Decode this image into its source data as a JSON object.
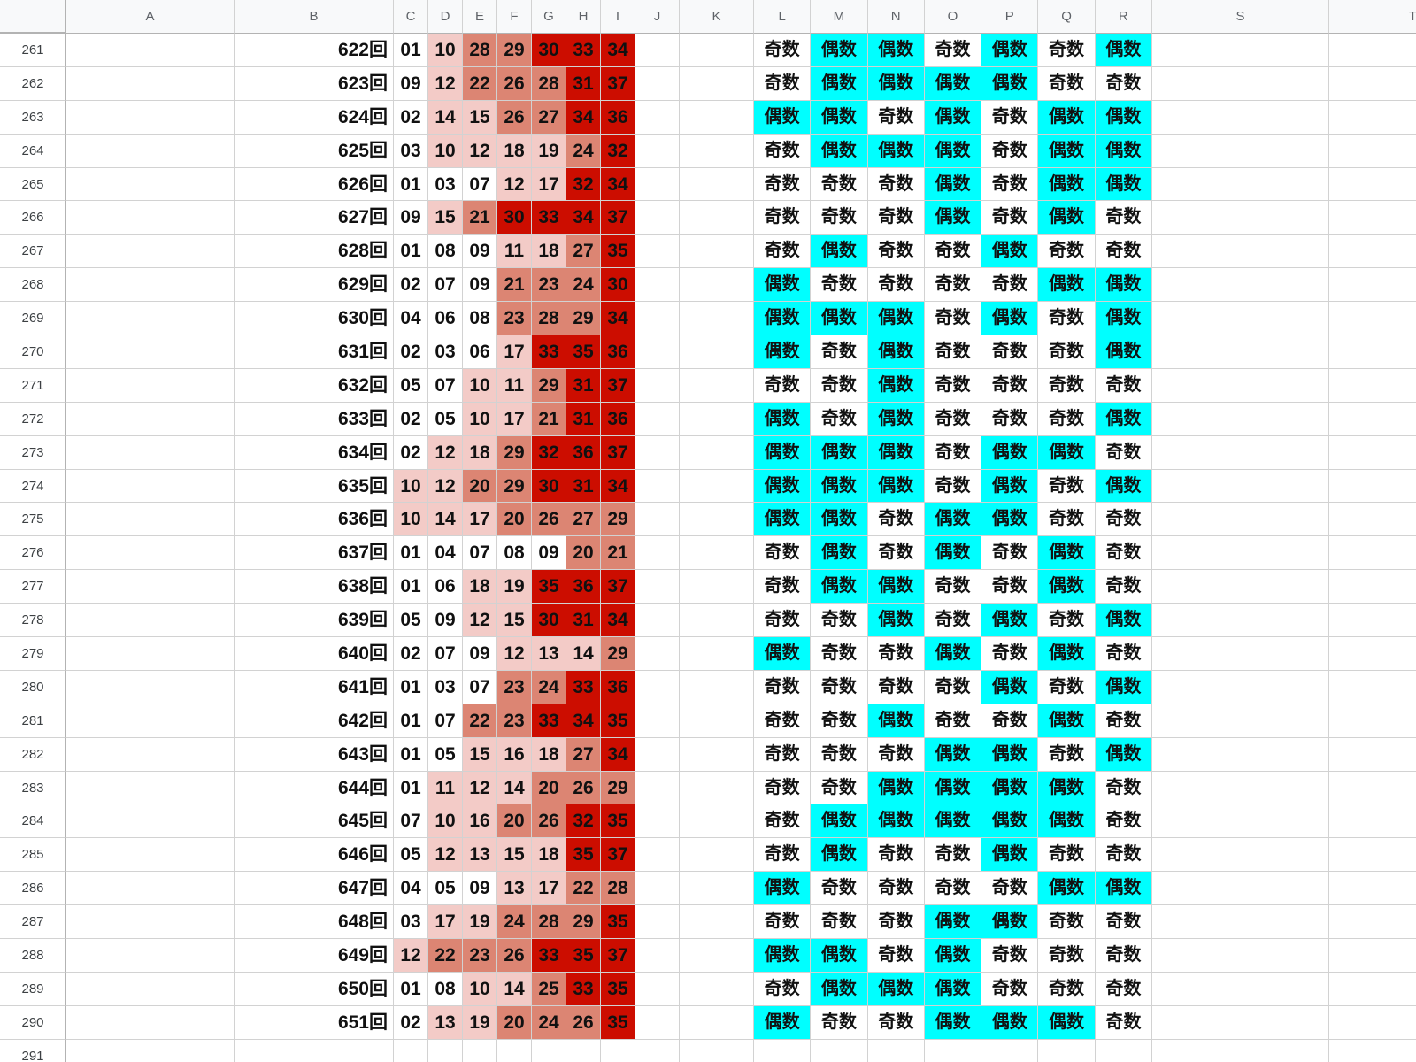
{
  "sheet": {
    "columns": [
      "A",
      "B",
      "C",
      "D",
      "E",
      "F",
      "G",
      "H",
      "I",
      "J",
      "K",
      "L",
      "M",
      "N",
      "O",
      "P",
      "Q",
      "R",
      "S",
      "T"
    ],
    "number_columns": [
      "C",
      "D",
      "E",
      "F",
      "G",
      "H",
      "I"
    ],
    "parity_columns": [
      "L",
      "M",
      "N",
      "O",
      "P",
      "Q",
      "R"
    ],
    "labels": {
      "odd": "奇数",
      "even": "偶数",
      "draw_suffix": "回"
    },
    "colors": {
      "even_bg": "#00ffff",
      "odd_bg": "#ffffff",
      "grid": "#d2d2d2",
      "header_bg": "#f8f9fa",
      "header_text": "#5f6368",
      "header_line": "#b3b3b3",
      "cell_text": "#111111",
      "heat_0_9": "#ffffff",
      "heat_10_19": "#f3cbc7",
      "heat_20_29": "#dc8573",
      "heat_30_37": "#cc0d00"
    },
    "heatmap_rules": [
      {
        "max": 9,
        "color": "#ffffff"
      },
      {
        "max": 19,
        "color": "#f3cbc7"
      },
      {
        "max": 29,
        "color": "#dc8573"
      },
      {
        "max": 37,
        "color": "#cc0d00"
      }
    ],
    "rows": [
      {
        "row": 261,
        "draw": "622回",
        "numbers": [
          "01",
          "10",
          "28",
          "29",
          "30",
          "33",
          "34"
        ]
      },
      {
        "row": 262,
        "draw": "623回",
        "numbers": [
          "09",
          "12",
          "22",
          "26",
          "28",
          "31",
          "37"
        ]
      },
      {
        "row": 263,
        "draw": "624回",
        "numbers": [
          "02",
          "14",
          "15",
          "26",
          "27",
          "34",
          "36"
        ]
      },
      {
        "row": 264,
        "draw": "625回",
        "numbers": [
          "03",
          "10",
          "12",
          "18",
          "19",
          "24",
          "32"
        ]
      },
      {
        "row": 265,
        "draw": "626回",
        "numbers": [
          "01",
          "03",
          "07",
          "12",
          "17",
          "32",
          "34"
        ]
      },
      {
        "row": 266,
        "draw": "627回",
        "numbers": [
          "09",
          "15",
          "21",
          "30",
          "33",
          "34",
          "37"
        ]
      },
      {
        "row": 267,
        "draw": "628回",
        "numbers": [
          "01",
          "08",
          "09",
          "11",
          "18",
          "27",
          "35"
        ]
      },
      {
        "row": 268,
        "draw": "629回",
        "numbers": [
          "02",
          "07",
          "09",
          "21",
          "23",
          "24",
          "30"
        ]
      },
      {
        "row": 269,
        "draw": "630回",
        "numbers": [
          "04",
          "06",
          "08",
          "23",
          "28",
          "29",
          "34"
        ]
      },
      {
        "row": 270,
        "draw": "631回",
        "numbers": [
          "02",
          "03",
          "06",
          "17",
          "33",
          "35",
          "36"
        ]
      },
      {
        "row": 271,
        "draw": "632回",
        "numbers": [
          "05",
          "07",
          "10",
          "11",
          "29",
          "31",
          "37"
        ]
      },
      {
        "row": 272,
        "draw": "633回",
        "numbers": [
          "02",
          "05",
          "10",
          "17",
          "21",
          "31",
          "36"
        ]
      },
      {
        "row": 273,
        "draw": "634回",
        "numbers": [
          "02",
          "12",
          "18",
          "29",
          "32",
          "36",
          "37"
        ]
      },
      {
        "row": 274,
        "draw": "635回",
        "numbers": [
          "10",
          "12",
          "20",
          "29",
          "30",
          "31",
          "34"
        ]
      },
      {
        "row": 275,
        "draw": "636回",
        "numbers": [
          "10",
          "14",
          "17",
          "20",
          "26",
          "27",
          "29"
        ]
      },
      {
        "row": 276,
        "draw": "637回",
        "numbers": [
          "01",
          "04",
          "07",
          "08",
          "09",
          "20",
          "21"
        ]
      },
      {
        "row": 277,
        "draw": "638回",
        "numbers": [
          "01",
          "06",
          "18",
          "19",
          "35",
          "36",
          "37"
        ]
      },
      {
        "row": 278,
        "draw": "639回",
        "numbers": [
          "05",
          "09",
          "12",
          "15",
          "30",
          "31",
          "34"
        ]
      },
      {
        "row": 279,
        "draw": "640回",
        "numbers": [
          "02",
          "07",
          "09",
          "12",
          "13",
          "14",
          "29"
        ]
      },
      {
        "row": 280,
        "draw": "641回",
        "numbers": [
          "01",
          "03",
          "07",
          "23",
          "24",
          "33",
          "36"
        ]
      },
      {
        "row": 281,
        "draw": "642回",
        "numbers": [
          "01",
          "07",
          "22",
          "23",
          "33",
          "34",
          "35"
        ]
      },
      {
        "row": 282,
        "draw": "643回",
        "numbers": [
          "01",
          "05",
          "15",
          "16",
          "18",
          "27",
          "34"
        ]
      },
      {
        "row": 283,
        "draw": "644回",
        "numbers": [
          "01",
          "11",
          "12",
          "14",
          "20",
          "26",
          "29"
        ]
      },
      {
        "row": 284,
        "draw": "645回",
        "numbers": [
          "07",
          "10",
          "16",
          "20",
          "26",
          "32",
          "35"
        ]
      },
      {
        "row": 285,
        "draw": "646回",
        "numbers": [
          "05",
          "12",
          "13",
          "15",
          "18",
          "35",
          "37"
        ]
      },
      {
        "row": 286,
        "draw": "647回",
        "numbers": [
          "04",
          "05",
          "09",
          "13",
          "17",
          "22",
          "28"
        ]
      },
      {
        "row": 287,
        "draw": "648回",
        "numbers": [
          "03",
          "17",
          "19",
          "24",
          "28",
          "29",
          "35"
        ]
      },
      {
        "row": 288,
        "draw": "649回",
        "numbers": [
          "12",
          "22",
          "23",
          "26",
          "33",
          "35",
          "37"
        ]
      },
      {
        "row": 289,
        "draw": "650回",
        "numbers": [
          "01",
          "08",
          "10",
          "14",
          "25",
          "33",
          "35"
        ]
      },
      {
        "row": 290,
        "draw": "651回",
        "numbers": [
          "02",
          "13",
          "19",
          "20",
          "24",
          "26",
          "35"
        ]
      },
      {
        "row": 291,
        "draw": "",
        "numbers": []
      }
    ]
  }
}
